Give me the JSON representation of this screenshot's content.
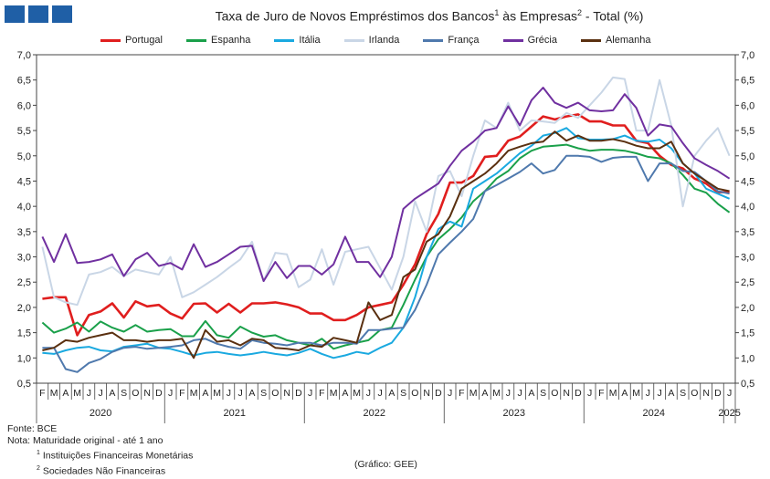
{
  "colors": {
    "logo": "#1f5fa6",
    "axis": "#444444",
    "grid": "#cccccc"
  },
  "title": {
    "main": "Taxa de Juro de Novos Empréstimos dos Bancos",
    "sup1": "1",
    "mid": " às Empresas",
    "sup2": "2",
    "end": " - Total (%)"
  },
  "notes": {
    "source": "Fonte:  BCE",
    "note": "Nota:  Maturidade original - até 1 ano",
    "fn1_mark": "1",
    "fn1": " Instituições Financeiras Monetárias",
    "fn2_mark": "2",
    "fn2": " Sociedades Não Financeiras",
    "credit": "(Gráfico: GEE)"
  },
  "chart_data": {
    "type": "line",
    "ylim": [
      0.5,
      7.0
    ],
    "yticks": [
      "0,5",
      "1,0",
      "1,5",
      "2,0",
      "2,5",
      "3,0",
      "3,5",
      "4,0",
      "4,5",
      "5,0",
      "5,5",
      "6,0",
      "6,5",
      "7,0"
    ],
    "month_labels": [
      "F",
      "M",
      "A",
      "M",
      "J",
      "J",
      "A",
      "S",
      "O",
      "N",
      "D",
      "J",
      "F",
      "M",
      "A",
      "M",
      "J",
      "J",
      "A",
      "S",
      "O",
      "N",
      "D",
      "J",
      "F",
      "M",
      "A",
      "M",
      "J",
      "J",
      "A",
      "S",
      "O",
      "N",
      "D",
      "J",
      "F",
      "M",
      "A",
      "M",
      "J",
      "J",
      "A",
      "S",
      "O",
      "N",
      "D",
      "J",
      "F",
      "M",
      "A",
      "M",
      "J",
      "J",
      "A",
      "S",
      "O",
      "N",
      "D",
      "J"
    ],
    "years": [
      {
        "label": "2020",
        "start": 0,
        "end": 10
      },
      {
        "label": "2021",
        "start": 11,
        "end": 22
      },
      {
        "label": "2022",
        "start": 23,
        "end": 34
      },
      {
        "label": "2023",
        "start": 35,
        "end": 46
      },
      {
        "label": "2024",
        "start": 47,
        "end": 58
      },
      {
        "label": "2025",
        "start": 59,
        "end": 59
      }
    ],
    "x": [
      "2020-02",
      "2020-03",
      "2020-04",
      "2020-05",
      "2020-06",
      "2020-07",
      "2020-08",
      "2020-09",
      "2020-10",
      "2020-11",
      "2020-12",
      "2021-01",
      "2021-02",
      "2021-03",
      "2021-04",
      "2021-05",
      "2021-06",
      "2021-07",
      "2021-08",
      "2021-09",
      "2021-10",
      "2021-11",
      "2021-12",
      "2022-01",
      "2022-02",
      "2022-03",
      "2022-04",
      "2022-05",
      "2022-06",
      "2022-07",
      "2022-08",
      "2022-09",
      "2022-10",
      "2022-11",
      "2022-12",
      "2023-01",
      "2023-02",
      "2023-03",
      "2023-04",
      "2023-05",
      "2023-06",
      "2023-07",
      "2023-08",
      "2023-09",
      "2023-10",
      "2023-11",
      "2023-12",
      "2024-01",
      "2024-02",
      "2024-03",
      "2024-04",
      "2024-05",
      "2024-06",
      "2024-07",
      "2024-08",
      "2024-09",
      "2024-10",
      "2024-11",
      "2024-12",
      "2025-01"
    ],
    "series": [
      {
        "name": "Portugal",
        "color": "#e01e1e",
        "width": 2.6,
        "values": [
          2.17,
          2.2,
          2.2,
          1.45,
          1.85,
          1.92,
          2.08,
          1.8,
          2.12,
          2.02,
          2.05,
          1.88,
          1.78,
          2.07,
          2.08,
          1.9,
          2.07,
          1.9,
          2.08,
          2.08,
          2.1,
          2.06,
          2.0,
          1.88,
          1.88,
          1.75,
          1.75,
          1.85,
          2.0,
          2.05,
          2.1,
          2.45,
          2.85,
          3.45,
          3.85,
          4.47,
          4.47,
          4.6,
          4.98,
          5.0,
          5.3,
          5.38,
          5.58,
          5.78,
          5.72,
          5.78,
          5.82,
          5.68,
          5.68,
          5.6,
          5.6,
          5.3,
          5.25,
          5.0,
          4.82,
          4.75,
          4.55,
          4.45,
          4.28,
          4.28
        ]
      },
      {
        "name": "Espanha",
        "color": "#1aa04a",
        "width": 2.0,
        "values": [
          1.7,
          1.5,
          1.58,
          1.7,
          1.52,
          1.72,
          1.6,
          1.52,
          1.65,
          1.52,
          1.55,
          1.57,
          1.43,
          1.43,
          1.73,
          1.45,
          1.4,
          1.62,
          1.5,
          1.42,
          1.45,
          1.35,
          1.3,
          1.25,
          1.38,
          1.18,
          1.25,
          1.3,
          1.35,
          1.55,
          1.6,
          2.05,
          2.55,
          3.0,
          3.35,
          3.55,
          3.78,
          4.1,
          4.3,
          4.55,
          4.7,
          4.95,
          5.1,
          5.18,
          5.2,
          5.22,
          5.15,
          5.1,
          5.12,
          5.12,
          5.1,
          5.05,
          4.98,
          4.95,
          4.85,
          4.62,
          4.35,
          4.27,
          4.05,
          3.88
        ]
      },
      {
        "name": "Itália",
        "color": "#1aa9e0",
        "width": 2.0,
        "values": [
          1.1,
          1.08,
          1.15,
          1.2,
          1.22,
          1.15,
          1.13,
          1.22,
          1.25,
          1.28,
          1.2,
          1.18,
          1.12,
          1.05,
          1.1,
          1.12,
          1.08,
          1.05,
          1.08,
          1.12,
          1.08,
          1.05,
          1.1,
          1.18,
          1.08,
          1.0,
          1.05,
          1.12,
          1.08,
          1.2,
          1.3,
          1.6,
          2.2,
          3.0,
          3.55,
          3.7,
          3.6,
          4.35,
          4.5,
          4.65,
          4.85,
          5.05,
          5.2,
          5.4,
          5.45,
          5.55,
          5.35,
          5.32,
          5.32,
          5.33,
          5.4,
          5.3,
          5.28,
          5.32,
          5.15,
          4.85,
          4.65,
          4.35,
          4.25,
          4.15
        ]
      },
      {
        "name": "Irlanda",
        "color": "#c9d6e6",
        "width": 2.0,
        "values": [
          3.2,
          2.2,
          2.1,
          2.05,
          2.65,
          2.7,
          2.8,
          2.62,
          2.75,
          2.7,
          2.65,
          3.0,
          2.2,
          2.3,
          2.45,
          2.6,
          2.78,
          2.95,
          3.3,
          2.52,
          3.08,
          3.05,
          2.4,
          2.55,
          3.15,
          2.45,
          3.1,
          3.15,
          3.2,
          2.78,
          2.35,
          3.0,
          4.1,
          3.5,
          4.6,
          4.7,
          4.2,
          5.0,
          5.7,
          5.55,
          6.05,
          5.5,
          5.7,
          5.68,
          5.65,
          5.85,
          5.75,
          6.0,
          6.25,
          6.55,
          6.52,
          5.5,
          5.5,
          6.5,
          5.6,
          4.0,
          5.0,
          5.3,
          5.55,
          5.0
        ]
      },
      {
        "name": "França",
        "color": "#4f79ad",
        "width": 2.0,
        "values": [
          1.2,
          1.2,
          0.78,
          0.72,
          0.9,
          0.98,
          1.12,
          1.2,
          1.22,
          1.18,
          1.2,
          1.22,
          1.25,
          1.35,
          1.38,
          1.28,
          1.22,
          1.18,
          1.35,
          1.3,
          1.28,
          1.25,
          1.3,
          1.3,
          1.25,
          1.3,
          1.3,
          1.28,
          1.55,
          1.55,
          1.58,
          1.6,
          1.95,
          2.45,
          3.05,
          3.28,
          3.5,
          3.75,
          4.3,
          4.42,
          4.55,
          4.68,
          4.85,
          4.65,
          4.72,
          5.0,
          5.0,
          4.98,
          4.88,
          4.96,
          4.98,
          4.98,
          4.5,
          4.85,
          4.85,
          4.7,
          4.68,
          4.5,
          4.3,
          4.25
        ]
      },
      {
        "name": "Grécia",
        "color": "#7030a0",
        "width": 2.0,
        "values": [
          3.4,
          2.9,
          3.45,
          2.88,
          2.9,
          2.95,
          3.05,
          2.62,
          2.95,
          3.08,
          2.82,
          2.88,
          2.75,
          3.25,
          2.8,
          2.9,
          3.05,
          3.2,
          3.22,
          2.52,
          2.9,
          2.58,
          2.82,
          2.82,
          2.65,
          2.85,
          3.4,
          2.9,
          2.9,
          2.6,
          3.0,
          3.95,
          4.15,
          4.3,
          4.45,
          4.8,
          5.1,
          5.28,
          5.5,
          5.55,
          5.98,
          5.6,
          6.1,
          6.35,
          6.05,
          5.95,
          6.05,
          5.9,
          5.88,
          5.9,
          6.22,
          5.95,
          5.4,
          5.62,
          5.58,
          5.25,
          4.95,
          4.82,
          4.7,
          4.55
        ]
      },
      {
        "name": "Alemanha",
        "color": "#5a3010",
        "width": 2.0,
        "values": [
          1.15,
          1.2,
          1.35,
          1.32,
          1.4,
          1.45,
          1.5,
          1.35,
          1.35,
          1.32,
          1.35,
          1.35,
          1.38,
          1.0,
          1.55,
          1.32,
          1.35,
          1.25,
          1.38,
          1.35,
          1.2,
          1.18,
          1.15,
          1.25,
          1.22,
          1.4,
          1.35,
          1.3,
          2.1,
          1.75,
          1.85,
          2.6,
          2.75,
          3.3,
          3.45,
          3.8,
          4.35,
          4.5,
          4.65,
          4.85,
          5.1,
          5.18,
          5.25,
          5.28,
          5.48,
          5.3,
          5.4,
          5.3,
          5.3,
          5.33,
          5.28,
          5.2,
          5.15,
          5.15,
          5.28,
          4.85,
          4.65,
          4.5,
          4.35,
          4.3
        ]
      }
    ]
  }
}
